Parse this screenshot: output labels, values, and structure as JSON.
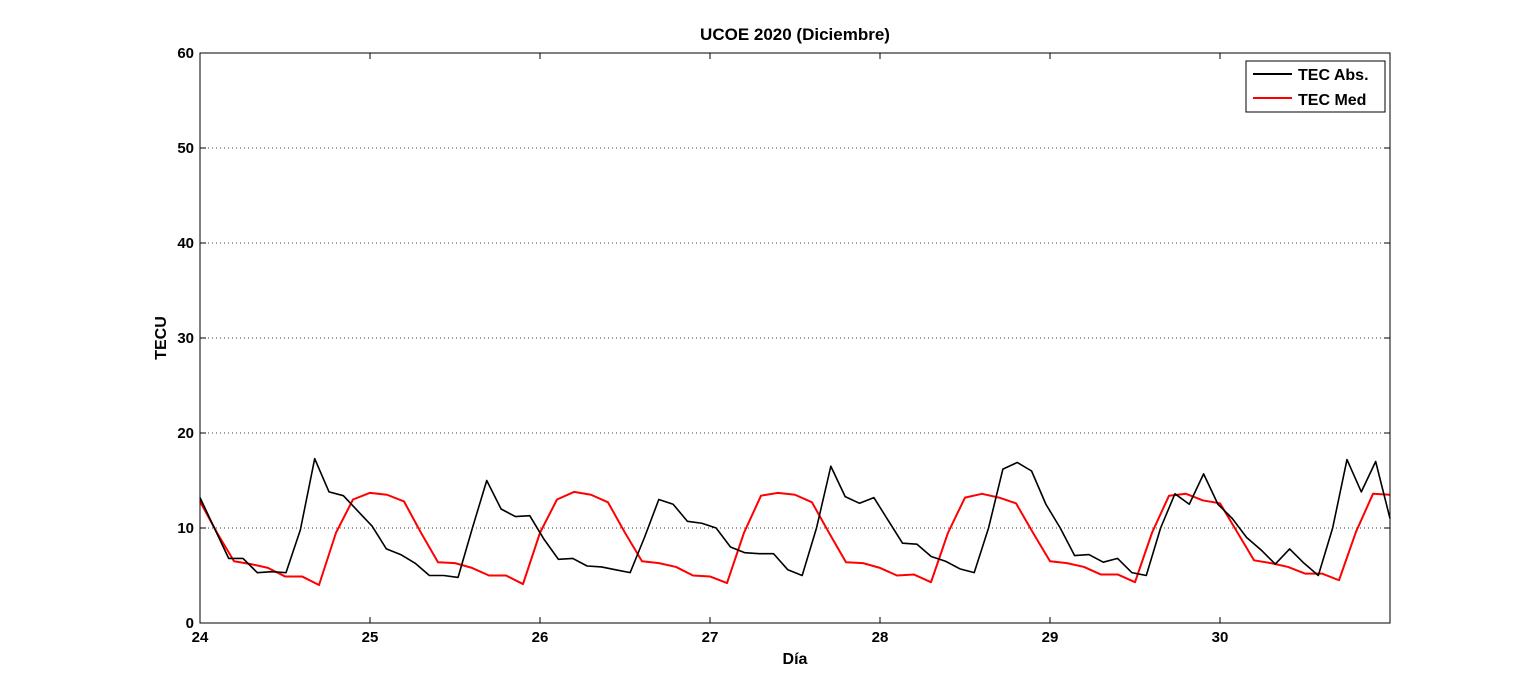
{
  "chart_data": {
    "type": "line",
    "title": "UCOE 2020 (Diciembre)",
    "xlabel": "Día",
    "ylabel": "TECU",
    "xlim": [
      24,
      31
    ],
    "ylim": [
      0,
      60
    ],
    "xticks": [
      24,
      25,
      26,
      27,
      28,
      29,
      30
    ],
    "xtick_labels": [
      "24",
      "25",
      "26",
      "27",
      "28",
      "29",
      "30"
    ],
    "yticks": [
      0,
      10,
      20,
      30,
      40,
      50,
      60
    ],
    "ytick_labels": [
      "0",
      "10",
      "20",
      "30",
      "40",
      "50",
      "60"
    ],
    "grid": "y-dotted",
    "legend": {
      "position": "top-right"
    },
    "x": [
      24.0,
      24.1,
      24.2,
      24.3,
      24.4,
      24.5,
      24.6,
      24.7,
      24.8,
      24.9,
      25.0,
      25.1,
      25.2,
      25.3,
      25.4,
      25.5,
      25.6,
      25.7,
      25.8,
      25.9,
      26.0,
      26.1,
      26.2,
      26.3,
      26.4,
      26.5,
      26.6,
      26.7,
      26.8,
      26.9,
      27.0,
      27.1,
      27.2,
      27.3,
      27.4,
      27.5,
      27.6,
      27.7,
      27.8,
      27.9,
      28.0,
      28.1,
      28.2,
      28.3,
      28.4,
      28.5,
      28.6,
      28.7,
      28.8,
      28.9,
      29.0,
      29.1,
      29.2,
      29.3,
      29.4,
      29.5,
      29.6,
      29.7,
      29.8,
      29.9,
      30.0,
      30.1,
      30.2,
      30.3,
      30.4,
      30.5,
      30.6,
      30.7,
      30.8,
      30.9,
      31.0
    ],
    "series": [
      {
        "name": "TEC Abs.",
        "color": "#000000",
        "values": [
          13.2,
          10.0,
          6.8,
          6.8,
          5.3,
          5.4,
          5.3,
          9.8,
          17.3,
          13.8,
          13.4,
          11.8,
          10.2,
          7.8,
          7.2,
          6.3,
          5.0,
          5.0,
          4.8,
          10.0,
          15.0,
          12.0,
          11.2,
          11.3,
          8.8,
          6.7,
          6.8,
          6.0,
          5.9,
          5.6,
          5.3,
          9.0,
          13.0,
          12.5,
          10.7,
          10.5,
          10.0,
          8.0,
          7.4,
          7.3,
          7.3,
          5.6,
          5.0,
          10.0,
          16.5,
          13.3,
          12.6,
          13.2,
          10.8,
          8.4,
          8.3,
          7.0,
          6.5,
          5.7,
          5.3,
          10.0,
          16.2,
          16.9,
          16.0,
          12.5,
          10.0,
          7.1,
          7.2,
          6.4,
          6.8,
          5.3,
          5.0,
          10.0,
          13.6,
          12.5,
          15.7
        ],
        "tail": [
          12.5,
          11.0,
          9.0,
          7.7,
          6.2,
          7.8,
          6.3,
          5.0,
          10.0,
          17.2,
          13.8,
          17.0,
          11.0
        ]
      },
      {
        "name": "TEC Med",
        "color": "#ff0000",
        "values": [
          12.8,
          9.5,
          6.5,
          6.2,
          5.8,
          4.9,
          4.9,
          4.0,
          9.5,
          13.0,
          13.7,
          13.5,
          12.8,
          9.5,
          6.4,
          6.3,
          5.8,
          5.0,
          5.0,
          4.1,
          9.5,
          13.0,
          13.8,
          13.5,
          12.7,
          9.5,
          6.5,
          6.3,
          5.9,
          5.0,
          4.9,
          4.2,
          9.5,
          13.4,
          13.7,
          13.5,
          12.7,
          9.5,
          6.4,
          6.3,
          5.8,
          5.0,
          5.1,
          4.3,
          9.5,
          13.2,
          13.6,
          13.2,
          12.6,
          9.5,
          6.5,
          6.3,
          5.9,
          5.1,
          5.1,
          4.3,
          9.5,
          13.4,
          13.6,
          12.9,
          12.6,
          9.6,
          6.6,
          6.3,
          5.9,
          5.2,
          5.2,
          4.5,
          9.6,
          13.6,
          13.5
        ]
      }
    ]
  }
}
